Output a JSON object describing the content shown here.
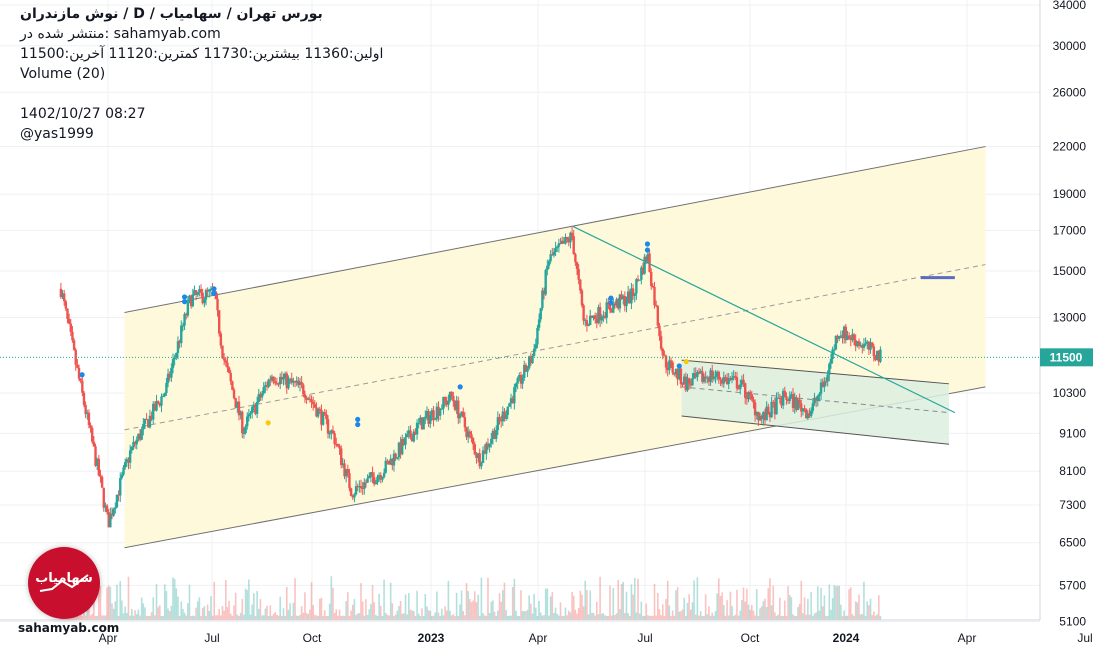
{
  "header": {
    "title": "نوش مازندران  /  D  /  بورس تهران / سهامیاب",
    "published_on": "منتشر شده در: sahamyab.com",
    "ohlc": "اولین:11360  بیشترین:11730  کمترین:11120  آخرین:11500",
    "volume_label": "Volume (20)",
    "timestamp": "1402/10/27 08:27",
    "author": "@yas1999"
  },
  "logo": {
    "text": "سهامیاب",
    "site": "sahamyab.com",
    "color": "#c8102e"
  },
  "colors": {
    "up": "#26a69a",
    "down": "#ef5350",
    "channel_fill": "#fff8d6",
    "wedge_fill": "#dcefdf",
    "trendline": "#26a69a",
    "last_price_bg": "#26a69a",
    "price_line": "#26a69a",
    "marker_blue": "#1e88e5",
    "marker_yellow": "#f9c80e",
    "target_line": "#5c6bc0"
  },
  "chart_data": {
    "type": "candlestick",
    "scale": "log",
    "x_axis": {
      "labels": [
        "Apr",
        "Jul",
        "Oct",
        "2023",
        "Apr",
        "Jul",
        "Oct",
        "2024",
        "Apr",
        "Jul"
      ],
      "bold": [
        "2023",
        "2024"
      ]
    },
    "y_axis": {
      "ticks": [
        34000,
        30000,
        26000,
        22000,
        19000,
        17000,
        15000,
        13000,
        11500,
        10300,
        9100,
        8100,
        7300,
        6500,
        5700,
        5100
      ]
    },
    "last_price": 11500,
    "ohlc": {
      "open": 11360,
      "high": 11730,
      "low": 11120,
      "close": 11500
    },
    "pivots": [
      [
        "2022-02-20",
        14200
      ],
      [
        "2022-03-05",
        11200
      ],
      [
        "2022-03-25",
        7900
      ],
      [
        "2022-04-01",
        6900
      ],
      [
        "2022-04-20",
        8600
      ],
      [
        "2022-05-20",
        10400
      ],
      [
        "2022-06-10",
        13800
      ],
      [
        "2022-06-30",
        14000
      ],
      [
        "2022-07-08",
        11500
      ],
      [
        "2022-07-25",
        9200
      ],
      [
        "2022-08-18",
        10900
      ],
      [
        "2022-09-15",
        10400
      ],
      [
        "2022-10-10",
        9000
      ],
      [
        "2022-10-25",
        7600
      ],
      [
        "2022-11-20",
        8100
      ],
      [
        "2022-12-20",
        9300
      ],
      [
        "2023-01-18",
        10200
      ],
      [
        "2023-02-10",
        8400
      ],
      [
        "2023-03-05",
        9800
      ],
      [
        "2023-03-28",
        11600
      ],
      [
        "2023-04-10",
        15500
      ],
      [
        "2023-04-30",
        16700
      ],
      [
        "2023-05-10",
        12800
      ],
      [
        "2023-05-28",
        13300
      ],
      [
        "2023-06-20",
        13900
      ],
      [
        "2023-07-03",
        15800
      ],
      [
        "2023-07-17",
        11400
      ],
      [
        "2023-08-05",
        10600
      ],
      [
        "2023-08-25",
        10900
      ],
      [
        "2023-09-20",
        10600
      ],
      [
        "2023-10-08",
        9500
      ],
      [
        "2023-10-28",
        10200
      ],
      [
        "2023-11-18",
        9700
      ],
      [
        "2023-12-01",
        10700
      ],
      [
        "2023-12-12",
        12500
      ],
      [
        "2023-12-28",
        12100
      ],
      [
        "2024-01-17",
        11500
      ]
    ],
    "channel": {
      "upper": [
        [
          "2022-04-15",
          13200
        ],
        [
          "2024-04-15",
          22000
        ]
      ],
      "lower": [
        [
          "2022-04-15",
          6400
        ],
        [
          "2024-04-15",
          10500
        ]
      ],
      "mid": [
        [
          "2022-04-15",
          9200
        ],
        [
          "2024-04-15",
          15300
        ]
      ]
    },
    "downtrend": [
      [
        "2023-05-01",
        17200
      ],
      [
        "2024-03-20",
        9700
      ]
    ],
    "wedge": {
      "upper": [
        [
          "2023-08-01",
          11400
        ],
        [
          "2024-03-15",
          10600
        ]
      ],
      "lower": [
        [
          "2023-08-01",
          9600
        ],
        [
          "2024-03-15",
          8800
        ]
      ],
      "mid": [
        [
          "2023-08-01",
          10500
        ],
        [
          "2024-03-15",
          9700
        ]
      ]
    },
    "target_level": {
      "from": "2024-02-20",
      "to": "2024-03-20",
      "value": 14700
    },
    "markers_blue": [
      [
        "2022-03-10",
        10900
      ],
      [
        "2022-06-05",
        13850
      ],
      [
        "2022-06-05",
        13650
      ],
      [
        "2022-06-30",
        14200
      ],
      [
        "2022-06-30",
        14000
      ],
      [
        "2022-10-30",
        9500
      ],
      [
        "2022-10-30",
        9350
      ],
      [
        "2023-01-25",
        10500
      ],
      [
        "2023-06-02",
        13800
      ],
      [
        "2023-06-02",
        13600
      ],
      [
        "2023-07-03",
        16300
      ],
      [
        "2023-07-03",
        16000
      ],
      [
        "2023-07-30",
        11200
      ]
    ],
    "markers_yellow": [
      [
        "2022-08-15",
        9400
      ],
      [
        "2023-08-05",
        11350
      ]
    ]
  }
}
